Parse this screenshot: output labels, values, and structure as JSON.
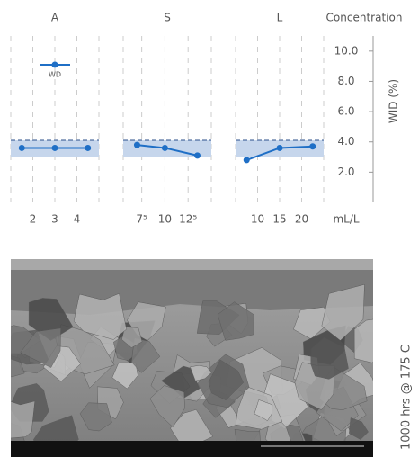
{
  "chart_data": [
    {
      "type": "line",
      "title": "A",
      "x": [
        1.5,
        3,
        4.5
      ],
      "values": [
        3.6,
        3.6,
        3.6
      ],
      "xlim": [
        1,
        5
      ],
      "xticks": [
        2,
        3,
        4
      ],
      "ylim": [
        0,
        11
      ],
      "band": [
        3.0,
        4.1
      ],
      "color": "#1f6fc6",
      "annotation": {
        "label": "WD",
        "x": 3,
        "value": 9.1
      }
    },
    {
      "type": "line",
      "title": "S",
      "x": [
        7,
        10,
        13.5
      ],
      "values": [
        3.8,
        3.6,
        3.1
      ],
      "xlim": [
        5.5,
        15
      ],
      "xticks": [
        {
          "value": 7.5,
          "label": "7⁵"
        },
        10,
        {
          "value": 12.5,
          "label": "12⁵"
        }
      ],
      "ylim": [
        0,
        11
      ],
      "band": [
        3.0,
        4.1
      ],
      "color": "#1f6fc6"
    },
    {
      "type": "line",
      "title": "L",
      "x": [
        7.5,
        15,
        22.5
      ],
      "values": [
        2.8,
        3.6,
        3.7
      ],
      "xlim": [
        5,
        25
      ],
      "xticks": [
        10,
        15,
        20
      ],
      "ylim": [
        0,
        11
      ],
      "band": [
        3.0,
        4.1
      ],
      "color": "#1f6fc6",
      "xlabel": "mL/L",
      "ylabel": "WID (%)",
      "y_title": "Concentration",
      "yticks": [
        {
          "value": 2,
          "label": "2.0"
        },
        {
          "value": 4,
          "label": "4.0"
        },
        {
          "value": 6,
          "label": "6.0"
        },
        {
          "value": 8,
          "label": "8.0"
        },
        {
          "value": 10,
          "label": "10.0"
        }
      ]
    }
  ],
  "image_caption": "1000 hrs @ 175 C"
}
